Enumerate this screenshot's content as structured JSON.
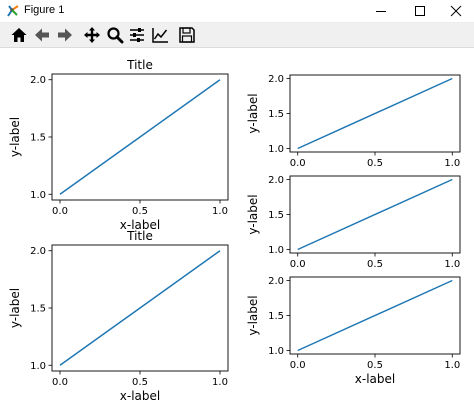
{
  "window": {
    "title": "Figure 1",
    "controls": [
      "minimize-icon",
      "maximize-icon",
      "close-icon"
    ]
  },
  "toolbar": {
    "buttons": [
      {
        "name": "home-button",
        "icon": "home-icon"
      },
      {
        "name": "back-button",
        "icon": "back-arrow-icon"
      },
      {
        "name": "forward-button",
        "icon": "forward-arrow-icon"
      },
      {
        "name": "pan-button",
        "icon": "pan-move-icon"
      },
      {
        "name": "zoom-button",
        "icon": "zoom-magnifier-icon"
      },
      {
        "name": "configure-subplots-button",
        "icon": "sliders-icon"
      },
      {
        "name": "edit-axes-button",
        "icon": "line-chart-icon"
      },
      {
        "name": "save-button",
        "icon": "floppy-disk-icon"
      }
    ]
  },
  "chart_data": [
    {
      "type": "line",
      "title": "Title",
      "xlabel": "x-label",
      "ylabel": "y-label",
      "x": [
        0,
        1
      ],
      "y": [
        1,
        2
      ],
      "xlim": [
        -0.05,
        1.05
      ],
      "ylim": [
        0.95,
        2.05
      ],
      "xticks": [
        "0.0",
        "0.5",
        "1.0"
      ],
      "yticks": [
        "1.0",
        "1.5",
        "2.0"
      ],
      "line_color": "#1f77b4",
      "grid": false
    },
    {
      "type": "line",
      "title": "Title",
      "xlabel": "x-label",
      "ylabel": "y-label",
      "x": [
        0,
        1
      ],
      "y": [
        1,
        2
      ],
      "xlim": [
        -0.05,
        1.05
      ],
      "ylim": [
        0.95,
        2.05
      ],
      "xticks": [
        "0.0",
        "0.5",
        "1.0"
      ],
      "yticks": [
        "1.0",
        "1.5",
        "2.0"
      ],
      "line_color": "#1f77b4",
      "grid": false
    },
    {
      "type": "line",
      "title": "",
      "xlabel": "",
      "ylabel": "y-label",
      "x": [
        0,
        1
      ],
      "y": [
        1,
        2
      ],
      "xlim": [
        -0.05,
        1.05
      ],
      "ylim": [
        0.95,
        2.05
      ],
      "xticks": [
        "0.0",
        "0.5",
        "1.0"
      ],
      "yticks": [
        "1.0",
        "1.5",
        "2.0"
      ],
      "line_color": "#1f77b4",
      "grid": false
    },
    {
      "type": "line",
      "title": "",
      "xlabel": "",
      "ylabel": "y-label",
      "x": [
        0,
        1
      ],
      "y": [
        1,
        2
      ],
      "xlim": [
        -0.05,
        1.05
      ],
      "ylim": [
        0.95,
        2.05
      ],
      "xticks": [
        "0.0",
        "0.5",
        "1.0"
      ],
      "yticks": [
        "1.0",
        "1.5",
        "2.0"
      ],
      "line_color": "#1f77b4",
      "grid": false
    },
    {
      "type": "line",
      "title": "",
      "xlabel": "x-label",
      "ylabel": "y-label",
      "x": [
        0,
        1
      ],
      "y": [
        1,
        2
      ],
      "xlim": [
        -0.05,
        1.05
      ],
      "ylim": [
        0.95,
        2.05
      ],
      "xticks": [
        "0.0",
        "0.5",
        "1.0"
      ],
      "yticks": [
        "1.0",
        "1.5",
        "2.0"
      ],
      "line_color": "#1f77b4",
      "grid": false
    }
  ]
}
